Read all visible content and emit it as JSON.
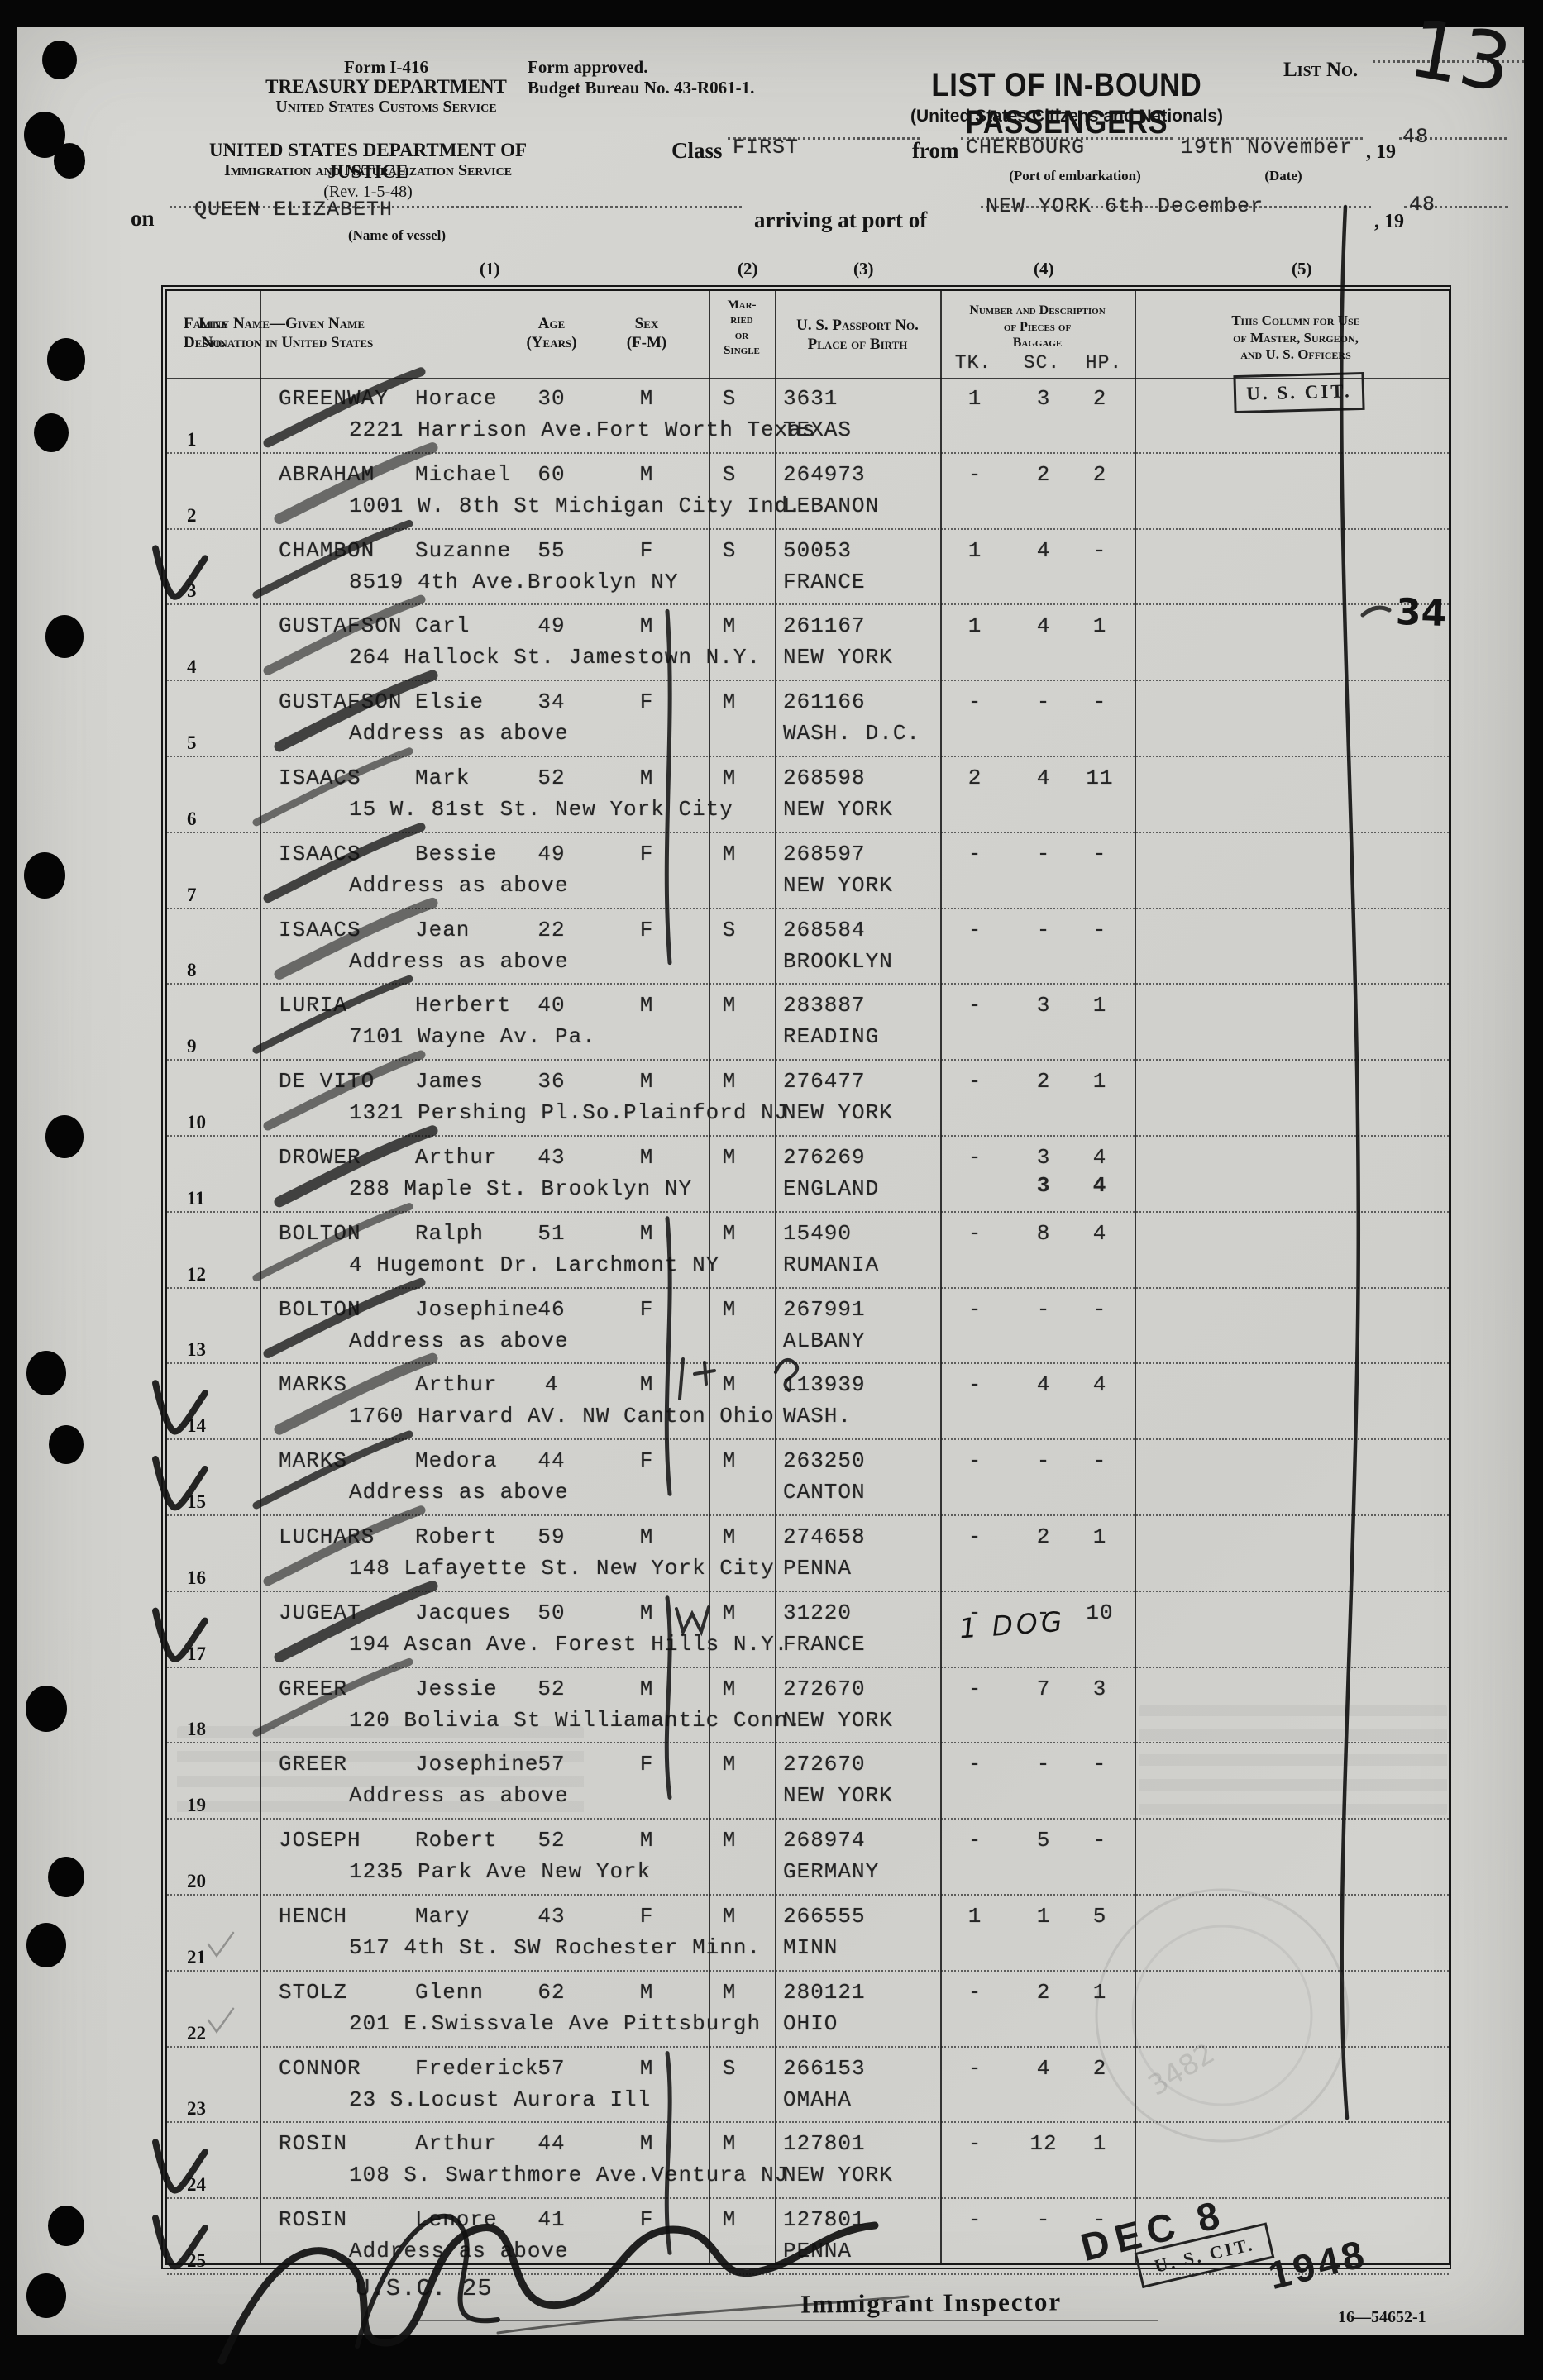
{
  "form": {
    "form_no": "Form I-416",
    "dept1": "TREASURY DEPARTMENT",
    "dept1_sub": "United States Customs Service",
    "dept2": "UNITED STATES DEPARTMENT OF JUSTICE",
    "dept2_sub": "Immigration and Naturalization Service",
    "revision": "(Rev. 1-5-48)",
    "approved_line1": "Form approved.",
    "approved_line2": "Budget Bureau No. 43-R061-1.",
    "list_no_label": "List No.",
    "title": "LIST OF IN-BOUND PASSENGERS",
    "subtitle": "(United States Citizens and Nationals)",
    "class_label": "Class",
    "class_value": "FIRST",
    "from_label": "from",
    "port_value": "CHERBOURG",
    "date_value": "19th November",
    "year_prefix": ", 19",
    "year_value": "48",
    "port_sub": "(Port of embarkation)",
    "date_sub": "(Date)",
    "on_label": "on",
    "vessel_value": "QUEEN ELIZABETH",
    "vessel_sub": "(Name of vessel)",
    "arriving_label": "arriving at port of",
    "arrive_port_value": "NEW YORK 6th December",
    "arrive_year_prefix": ", 19",
    "arrive_year_value": "48"
  },
  "table": {
    "col_groups": [
      "(1)",
      "(2)",
      "(3)",
      "(4)",
      "(5)"
    ],
    "headers": {
      "line_no": "Line\nNo.",
      "name": "Family Name—Given Name\nDestination in United States",
      "age": "Age\n(Years)",
      "sex": "Sex\n(F-M)",
      "marital": "Mar-\nried\nor\nSingle",
      "passport": "U. S. Passport No.\nPlace of Birth",
      "baggage": "Number and Description\nof Pieces of\nBaggage",
      "officers": "This Column for Use\nof Master, Surgeon,\nand U. S. Officers",
      "tk": "TK.",
      "sc": "SC.",
      "hp": "HP."
    },
    "rows": [
      {
        "line": "1",
        "family": "GREENWAY",
        "given": "Horace",
        "age": "30",
        "sex": "M",
        "marital": "S",
        "passport": "3631",
        "address": "2221 Harrison Ave.Fort Worth Texas",
        "birth": "TEXAS",
        "tk": "1",
        "sc": "3",
        "hp": "2"
      },
      {
        "line": "2",
        "family": "ABRAHAM",
        "given": "Michael",
        "age": "60",
        "sex": "M",
        "marital": "S",
        "passport": "264973",
        "address": "1001 W. 8th St Michigan City Ind.",
        "birth": "LEBANON",
        "tk": "-",
        "sc": "2",
        "hp": "2"
      },
      {
        "line": "3",
        "family": "CHAMBON",
        "given": "Suzanne",
        "age": "55",
        "sex": "F",
        "marital": "S",
        "passport": "50053",
        "address": "8519 4th Ave.Brooklyn NY",
        "birth": "FRANCE",
        "tk": "1",
        "sc": "4",
        "hp": "-"
      },
      {
        "line": "4",
        "family": "GUSTAFSON",
        "given": "Carl",
        "age": "49",
        "sex": "M",
        "marital": "M",
        "passport": "261167",
        "address": "264 Hallock St. Jamestown N.Y.",
        "birth": "NEW YORK",
        "tk": "1",
        "sc": "4",
        "hp": "1"
      },
      {
        "line": "5",
        "family": "GUSTAFSON",
        "given": "Elsie",
        "age": "34",
        "sex": "F",
        "marital": "M",
        "passport": "261166",
        "address": "Address as above",
        "birth": "WASH. D.C.",
        "tk": "-",
        "sc": "-",
        "hp": "-"
      },
      {
        "line": "6",
        "family": "ISAACS",
        "given": "Mark",
        "age": "52",
        "sex": "M",
        "marital": "M",
        "passport": "268598",
        "address": "15 W. 81st St. New York City",
        "birth": "NEW YORK",
        "tk": "2",
        "sc": "4",
        "hp": "11"
      },
      {
        "line": "7",
        "family": "ISAACS",
        "given": "Bessie",
        "age": "49",
        "sex": "F",
        "marital": "M",
        "passport": "268597",
        "address": "Address as above",
        "birth": "NEW YORK",
        "tk": "-",
        "sc": "-",
        "hp": "-"
      },
      {
        "line": "8",
        "family": "ISAACS",
        "given": "Jean",
        "age": "22",
        "sex": "F",
        "marital": "S",
        "passport": "268584",
        "address": "Address as above",
        "birth": "BROOKLYN",
        "tk": "-",
        "sc": "-",
        "hp": "-"
      },
      {
        "line": "9",
        "family": "LURIA",
        "given": "Herbert",
        "age": "40",
        "sex": "M",
        "marital": "M",
        "passport": "283887",
        "address": "7101 Wayne Av. Pa.",
        "birth": "READING",
        "tk": "-",
        "sc": "3",
        "hp": "1"
      },
      {
        "line": "10",
        "family": "DE VITO",
        "given": "James",
        "age": "36",
        "sex": "M",
        "marital": "M",
        "passport": "276477",
        "address": "1321 Pershing Pl.So.Plainford NJ",
        "birth": "NEW YORK",
        "tk": "-",
        "sc": "2",
        "hp": "1"
      },
      {
        "line": "11",
        "family": "DROWER",
        "given": "Arthur",
        "age": "43",
        "sex": "M",
        "marital": "M",
        "passport": "276269",
        "address": "288 Maple St. Brooklyn NY",
        "birth": "ENGLAND",
        "tk": "-",
        "sc": "3",
        "hp": "4",
        "dup_sc": "3",
        "dup_hp": "4"
      },
      {
        "line": "12",
        "family": "BOLTON",
        "given": "Ralph",
        "age": "51",
        "sex": "M",
        "marital": "M",
        "passport": "15490",
        "address": "4 Hugemont Dr. Larchmont NY",
        "birth": "RUMANIA",
        "tk": "-",
        "sc": "8",
        "hp": "4"
      },
      {
        "line": "13",
        "family": "BOLTON",
        "given": "Josephine",
        "age": "46",
        "sex": "F",
        "marital": "M",
        "passport": "267991",
        "address": "Address as above",
        "birth": "ALBANY",
        "tk": "-",
        "sc": "-",
        "hp": "-"
      },
      {
        "line": "14",
        "family": "MARKS",
        "given": "Arthur",
        "age": "4",
        "sex": "M",
        "marital": "M",
        "passport": "113939",
        "address": "1760 Harvard AV. NW Canton Ohio",
        "birth": "WASH.",
        "tk": "-",
        "sc": "4",
        "hp": "4"
      },
      {
        "line": "15",
        "family": "MARKS",
        "given": "Medora",
        "age": "44",
        "sex": "F",
        "marital": "M",
        "passport": "263250",
        "address": "Address as above",
        "birth": "CANTON",
        "tk": "-",
        "sc": "-",
        "hp": "-"
      },
      {
        "line": "16",
        "family": "LUCHARS",
        "given": "Robert",
        "age": "59",
        "sex": "M",
        "marital": "M",
        "passport": "274658",
        "address": "148 Lafayette St. New York City",
        "birth": "PENNA",
        "tk": "-",
        "sc": "2",
        "hp": "1"
      },
      {
        "line": "17",
        "family": "JUGEAT",
        "given": "Jacques",
        "age": "50",
        "sex": "M",
        "marital": "M",
        "passport": "31220",
        "address": "194 Ascan Ave. Forest Hills N.Y.",
        "birth": "FRANCE",
        "tk": "-",
        "sc": "-",
        "hp": "10"
      },
      {
        "line": "18",
        "family": "GREER",
        "given": "Jessie",
        "age": "52",
        "sex": "M",
        "marital": "M",
        "passport": "272670",
        "address": "120 Bolivia St Williamantic Conn.",
        "birth": "NEW YORK",
        "tk": "-",
        "sc": "7",
        "hp": "3"
      },
      {
        "line": "19",
        "family": "GREER",
        "given": "Josephine",
        "age": "57",
        "sex": "F",
        "marital": "M",
        "passport": "272670",
        "address": "Address as above",
        "birth": "NEW YORK",
        "tk": "-",
        "sc": "-",
        "hp": "-"
      },
      {
        "line": "20",
        "family": "JOSEPH",
        "given": "Robert",
        "age": "52",
        "sex": "M",
        "marital": "M",
        "passport": "268974",
        "address": "1235 Park Ave New York",
        "birth": "GERMANY",
        "tk": "-",
        "sc": "5",
        "hp": "-"
      },
      {
        "line": "21",
        "family": "HENCH",
        "given": "Mary",
        "age": "43",
        "sex": "F",
        "marital": "M",
        "passport": "266555",
        "address": "517 4th St. SW Rochester Minn.",
        "birth": "MINN",
        "tk": "1",
        "sc": "1",
        "hp": "5"
      },
      {
        "line": "22",
        "family": "STOLZ",
        "given": "Glenn",
        "age": "62",
        "sex": "M",
        "marital": "M",
        "passport": "280121",
        "address": "201 E.Swissvale Ave Pittsburgh",
        "birth": "OHIO",
        "tk": "-",
        "sc": "2",
        "hp": "1"
      },
      {
        "line": "23",
        "family": "CONNOR",
        "given": "Frederick",
        "age": "57",
        "sex": "M",
        "marital": "S",
        "passport": "266153",
        "address": "23 S.Locust Aurora Ill",
        "birth": "OMAHA",
        "tk": "-",
        "sc": "4",
        "hp": "2"
      },
      {
        "line": "24",
        "family": "ROSIN",
        "given": "Arthur",
        "age": "44",
        "sex": "M",
        "marital": "M",
        "passport": "127801",
        "address": "108 S. Swarthmore Ave.Ventura NJ",
        "birth": "NEW YORK",
        "tk": "-",
        "sc": "12",
        "hp": "1"
      },
      {
        "line": "25",
        "family": "ROSIN",
        "given": "Lenore",
        "age": "41",
        "sex": "F",
        "marital": "M",
        "passport": "127801",
        "address": "Address as above",
        "birth": "PENNA",
        "tk": "-",
        "sc": "-",
        "hp": "-"
      }
    ],
    "marks": {
      "check_rows": [
        3,
        14,
        15,
        17,
        24,
        25
      ],
      "light_check_rows": [
        21,
        22
      ],
      "slash_rows": [
        1,
        2,
        3,
        4,
        5,
        6,
        7,
        8,
        9,
        10,
        11,
        12,
        13,
        14,
        15,
        16,
        17,
        18
      ],
      "pen_column_stroke_row_ranges": [
        [
          4,
          8
        ],
        [
          12,
          15
        ],
        [
          17,
          19
        ],
        [
          23,
          25
        ]
      ]
    }
  },
  "annotations": {
    "list_no": "13",
    "officer_col_number": "34",
    "us_cit_stamp": "U. S. CIT.",
    "dog_note": "1 DOG",
    "faint_stamp_number": "3482"
  },
  "footer": {
    "usc": "U.S.C. 25",
    "inspector": "Immigrant Inspector",
    "date_stamp_line1": "DEC 8",
    "date_stamp_year": "1948",
    "us_cit": "U. S. CIT.",
    "print_code": "16—54652-1"
  }
}
